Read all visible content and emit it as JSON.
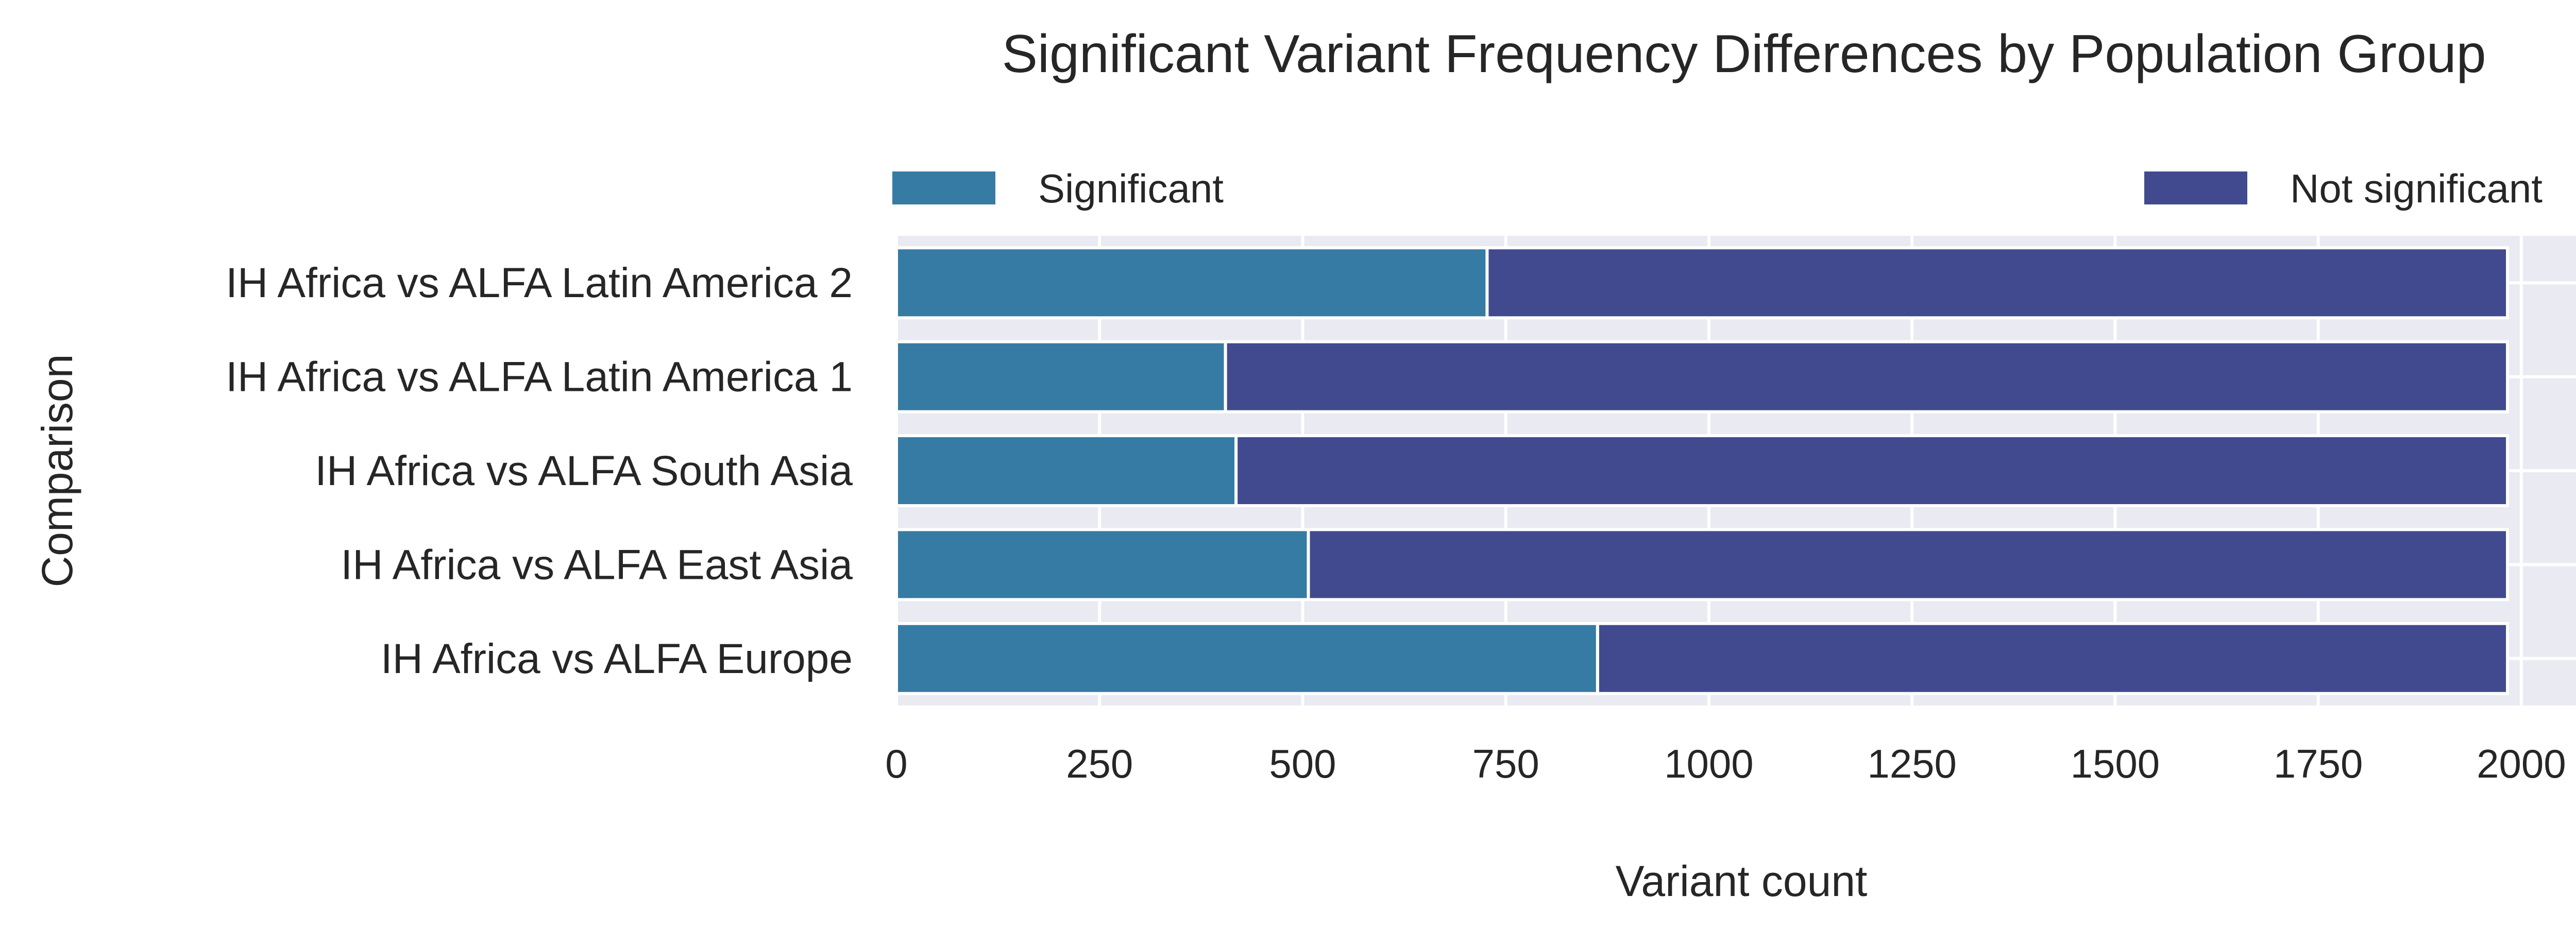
{
  "chart_data": {
    "type": "bar",
    "orientation": "horizontal",
    "stacked": true,
    "title": "Significant Variant Frequency Differences by Population Group",
    "xlabel": "Variant count",
    "ylabel": "Comparison",
    "categories": [
      "IH Africa vs ALFA Latin America 2",
      "IH Africa vs ALFA Latin America 1",
      "IH Africa vs ALFA South Asia",
      "IH Africa vs ALFA East Asia",
      "IH Africa vs ALFA Europe"
    ],
    "series": [
      {
        "name": "Significant",
        "color": "#367ba4",
        "values": [
          727,
          405,
          418,
          507,
          863
        ]
      },
      {
        "name": "Not significant",
        "color": "#414a8e",
        "values": [
          1256,
          1578,
          1565,
          1476,
          1120
        ]
      }
    ],
    "xlim": [
      0,
      2080
    ],
    "xticks": [
      "0",
      "250",
      "500",
      "750",
      "1000",
      "1250",
      "1500",
      "1750",
      "2000"
    ],
    "grid": true,
    "legend_placement": "top"
  }
}
